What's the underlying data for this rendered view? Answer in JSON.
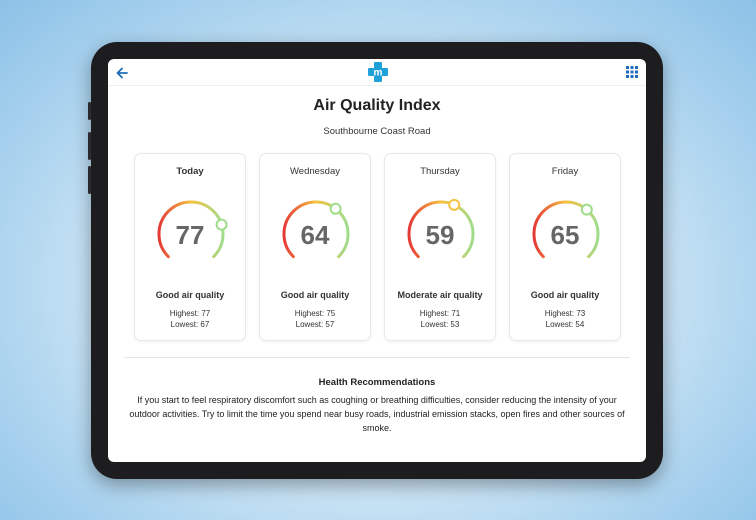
{
  "header": {
    "back_icon": "arrow-left-icon",
    "logo_letter": "m",
    "logo_color": "#1fa0d8",
    "menu_icon": "grid-icon"
  },
  "page": {
    "title": "Air Quality Index",
    "location": "Southbourne Coast Road"
  },
  "forecast": [
    {
      "day": "Today",
      "value": "77",
      "aqi": 77,
      "quality": "Good air quality",
      "highest": "Highest: 77",
      "lowest": "Lowest: 67"
    },
    {
      "day": "Wednesday",
      "value": "64",
      "aqi": 64,
      "quality": "Good air quality",
      "highest": "Highest: 75",
      "lowest": "Lowest: 57"
    },
    {
      "day": "Thursday",
      "value": "59",
      "aqi": 59,
      "quality": "Moderate air quality",
      "highest": "Highest: 71",
      "lowest": "Lowest: 53"
    },
    {
      "day": "Friday",
      "value": "65",
      "aqi": 65,
      "quality": "Good air quality",
      "highest": "Highest: 73",
      "lowest": "Lowest: 54"
    }
  ],
  "gauge_colors": {
    "low": "#e53935",
    "mid": "#f5c242",
    "high": "#9fdc8c",
    "accent": "#1e6fb8"
  },
  "health": {
    "title": "Health Recommendations",
    "text": "If you start to feel respiratory discomfort such as coughing or breathing difficulties, consider reducing the intensity of your outdoor activities. Try to limit the time you spend near busy roads, industrial emission stacks, open fires and other sources of smoke."
  }
}
